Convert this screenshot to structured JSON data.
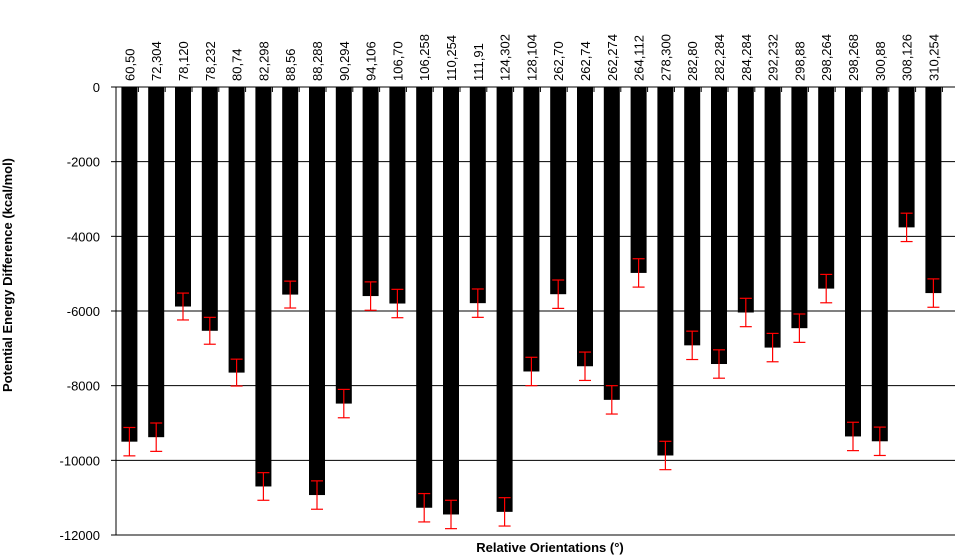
{
  "chart_data": {
    "type": "bar",
    "xlabel": "Relative Orientations (°)",
    "ylabel": "Potential Energy Difference  (kcal/mol)",
    "ylim": [
      -12000,
      0
    ],
    "yticks": [
      0,
      -2000,
      -4000,
      -6000,
      -8000,
      -10000,
      -12000
    ],
    "grid": true,
    "colors": {
      "bar": "#000000",
      "error_bar": "#ff0000",
      "grid": "#000000"
    },
    "categories": [
      "60,50",
      "72,304",
      "78,120",
      "78,232",
      "80,74",
      "82,298",
      "88,56",
      "88,288",
      "90,294",
      "94,106",
      "106,70",
      "106,258",
      "110,254",
      "111,91",
      "124,302",
      "128,104",
      "262,70",
      "262,74",
      "262,274",
      "264,112",
      "278,300",
      "282,80",
      "282,284",
      "284,284",
      "292,232",
      "298,88",
      "298,264",
      "298,268",
      "300,88",
      "308,126",
      "310,254"
    ],
    "series": [
      {
        "values": [
          -9500,
          -9380,
          -5880,
          -6530,
          -7650,
          -10700,
          -5560,
          -10930,
          -8480,
          -5600,
          -5800,
          -11270,
          -11450,
          -5790,
          -11380,
          -7620,
          -5550,
          -7480,
          -8380,
          -4980,
          -9870,
          -6920,
          -7420,
          -6040,
          -6980,
          -6460,
          -5400,
          -9360,
          -9490,
          -3760,
          -5520
        ],
        "errors": [
          380,
          380,
          360,
          360,
          360,
          370,
          360,
          380,
          380,
          380,
          380,
          380,
          380,
          380,
          380,
          380,
          380,
          380,
          380,
          380,
          380,
          380,
          380,
          380,
          380,
          380,
          380,
          380,
          380,
          380,
          380
        ]
      }
    ]
  }
}
